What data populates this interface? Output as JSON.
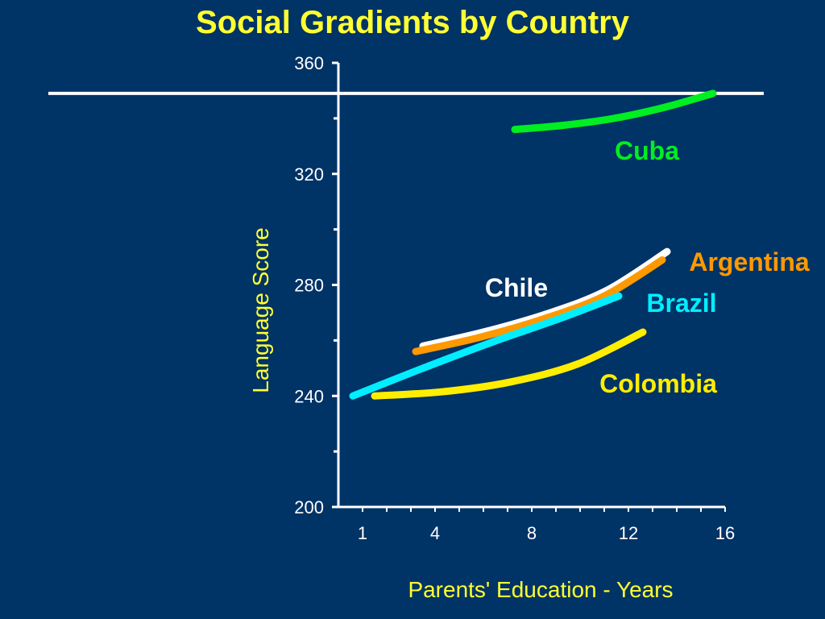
{
  "chart_data": {
    "type": "line",
    "title": "Social Gradients by Country",
    "xlabel": "Parents' Education - Years",
    "ylabel": "Language Score",
    "xlim": [
      0,
      16
    ],
    "ylim": [
      200,
      360
    ],
    "x_ticks": [
      1,
      4,
      8,
      12,
      16
    ],
    "y_ticks": [
      200,
      240,
      280,
      320,
      360
    ],
    "reference_line_y": 349,
    "grid": false,
    "series": [
      {
        "name": "Cuba",
        "color": "#00ee22",
        "x": [
          7.3,
          9.3,
          11.4,
          13.5,
          15.5
        ],
        "y": [
          336,
          337.5,
          340,
          344,
          349
        ]
      },
      {
        "name": "Argentina",
        "color": "#ff9900",
        "x": [
          3.2,
          5.8,
          8.4,
          11.0,
          13.4
        ],
        "y": [
          256,
          261,
          267.5,
          276,
          289
        ]
      },
      {
        "name": "Chile",
        "color": "#ffffff",
        "x": [
          3.5,
          6.0,
          8.6,
          11.1,
          13.6
        ],
        "y": [
          258,
          263,
          269.5,
          278,
          292
        ]
      },
      {
        "name": "Brazil",
        "color": "#00eeff",
        "x": [
          0.6,
          3.5,
          6.4,
          9.2,
          11.6
        ],
        "y": [
          240,
          250,
          259.5,
          268,
          276
        ]
      },
      {
        "name": "Colombia",
        "color": "#ffee00",
        "x": [
          1.5,
          4.3,
          7.1,
          9.9,
          12.6
        ],
        "y": [
          240,
          241.5,
          245,
          251.5,
          263
        ]
      }
    ]
  }
}
